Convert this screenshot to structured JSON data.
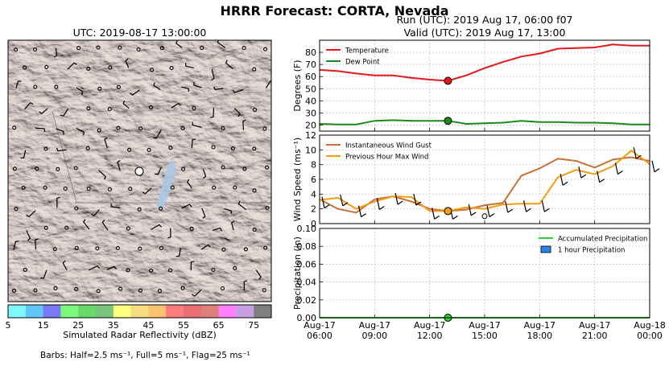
{
  "figure": {
    "suptitle": "HRRR Forecast: CORTA, Nevada",
    "run_label": "Run (UTC): 2019 Aug 17, 06:00 f07",
    "valid_label": "Valid (UTC): 2019 Aug 17, 13:00",
    "barbs_note": "Barbs: Half=2.5 ms⁻¹, Full=5 ms⁻¹, Flag=25 ms⁻¹"
  },
  "map": {
    "title": "UTC: 2019-08-17 13:00:00",
    "colorbar_label": "Simulated Radar Reflectivity (dBZ)",
    "colorbar_ticks": [
      "5",
      "15",
      "25",
      "35",
      "45",
      "55",
      "65",
      "75"
    ],
    "colorbar_colors": [
      "#7ff7fb",
      "#5fc8f7",
      "#7a79f5",
      "#7cf97b",
      "#6bd86b",
      "#77c47a",
      "#ffff7f",
      "#f5dd7f",
      "#fbc26f",
      "#fb7c7c",
      "#e56f73",
      "#df7f7b",
      "#ff7fff",
      "#c7a0df",
      "#7f7f7f"
    ],
    "terrain_color": "#d9c7c2",
    "lake_color": "#a8c8e6"
  },
  "chart_data": [
    {
      "type": "line",
      "ylabel": "Degrees (F)",
      "ylim": [
        15,
        90
      ],
      "yticks": [
        "20",
        "30",
        "40",
        "50",
        "60",
        "70",
        "80"
      ],
      "x_hours": [
        0,
        1,
        2,
        3,
        4,
        5,
        6,
        7,
        8,
        9,
        10,
        11,
        12,
        13,
        14,
        15,
        16,
        17,
        18
      ],
      "series": [
        {
          "name": "Temperature",
          "color": "#e31a1c",
          "values": [
            65.5,
            64.5,
            62.5,
            61,
            61,
            59,
            57.5,
            56.5,
            61,
            67,
            72,
            76.5,
            79,
            83,
            83.5,
            84,
            86.5,
            85.5,
            85.5
          ]
        },
        {
          "name": "Dew Point",
          "color": "#1a8a1a",
          "values": [
            21,
            20.5,
            20.5,
            23.5,
            24,
            23.5,
            23.5,
            23.5,
            21,
            21.5,
            22,
            23.5,
            22.5,
            22.5,
            22,
            22,
            21.5,
            20.5,
            20.5
          ]
        }
      ],
      "marker_x": 7,
      "marker_values": [
        56.5,
        23.5
      ],
      "legend": "top-left",
      "grid": true
    },
    {
      "type": "line",
      "ylabel": "Wind Speed (ms⁻¹)",
      "ylim": [
        0,
        12
      ],
      "yticks": [
        "0",
        "2",
        "4",
        "6",
        "8",
        "10",
        "12"
      ],
      "x_hours": [
        0,
        1,
        2,
        3,
        4,
        5,
        6,
        7,
        8,
        9,
        10,
        11,
        12,
        13,
        14,
        15,
        16,
        17,
        18
      ],
      "series": [
        {
          "name": "Instantaneous Wind Gust",
          "color": "#c87137",
          "values": [
            3.3,
            2.0,
            1.5,
            3.3,
            3.7,
            3.0,
            2.0,
            1.7,
            1.9,
            2.5,
            2.8,
            6.5,
            7.5,
            8.8,
            8.5,
            7.6,
            8.7,
            9.0,
            8.5
          ]
        },
        {
          "name": "Previous Hour Max Wind",
          "color": "#f39c12",
          "values": [
            3.2,
            3.5,
            2.0,
            3.0,
            3.7,
            3.6,
            1.7,
            1.7,
            2.2,
            2.0,
            2.6,
            2.7,
            2.7,
            6.3,
            7.3,
            6.7,
            7.8,
            9.9,
            8.1
          ]
        }
      ],
      "marker_x": 7,
      "marker_value": 1.7,
      "legend": "top-left",
      "grid": true
    },
    {
      "type": "line",
      "ylabel": "Precipitation (in)",
      "ylim": [
        0,
        0.1
      ],
      "yticks": [
        "0.00",
        "0.02",
        "0.04",
        "0.06",
        "0.08",
        "0.10"
      ],
      "x_hours": [
        0,
        18
      ],
      "series": [
        {
          "name": "Accumulated Precipitation",
          "color": "#33cc33",
          "values": [
            0,
            0
          ]
        }
      ],
      "bar_series": {
        "name": "1 hour Precipitation",
        "color": "#2b83e6",
        "values": []
      },
      "marker_x": 7,
      "marker_value": 0,
      "legend": "top-right",
      "grid": true
    }
  ],
  "time_axis": {
    "ticks": [
      {
        "hour": 0,
        "date": "Aug-17",
        "time": "06:00"
      },
      {
        "hour": 3,
        "date": "Aug-17",
        "time": "09:00"
      },
      {
        "hour": 6,
        "date": "Aug-17",
        "time": "12:00"
      },
      {
        "hour": 9,
        "date": "Aug-17",
        "time": "15:00"
      },
      {
        "hour": 12,
        "date": "Aug-17",
        "time": "18:00"
      },
      {
        "hour": 15,
        "date": "Aug-17",
        "time": "21:00"
      },
      {
        "hour": 18,
        "date": "Aug-18",
        "time": "00:00"
      }
    ]
  }
}
